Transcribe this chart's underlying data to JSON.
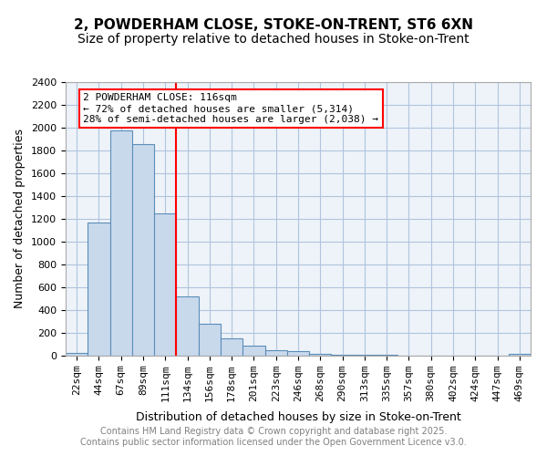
{
  "title1": "2, POWDERHAM CLOSE, STOKE-ON-TRENT, ST6 6XN",
  "title2": "Size of property relative to detached houses in Stoke-on-Trent",
  "xlabel": "Distribution of detached houses by size in Stoke-on-Trent",
  "ylabel": "Number of detached properties",
  "categories": [
    "22sqm",
    "44sqm",
    "67sqm",
    "89sqm",
    "111sqm",
    "134sqm",
    "156sqm",
    "178sqm",
    "201sqm",
    "223sqm",
    "246sqm",
    "268sqm",
    "290sqm",
    "313sqm",
    "335sqm",
    "357sqm",
    "380sqm",
    "402sqm",
    "424sqm",
    "447sqm",
    "469sqm"
  ],
  "values": [
    25,
    1170,
    1980,
    1860,
    1250,
    520,
    280,
    155,
    90,
    45,
    40,
    18,
    12,
    8,
    5,
    3,
    2,
    2,
    1,
    1,
    15
  ],
  "bar_color": "#c9d9ec",
  "bar_edge_color": "#5b8db8",
  "vline_x": 4.5,
  "vline_color": "red",
  "annotation_text": "2 POWDERHAM CLOSE: 116sqm\n← 72% of detached houses are smaller (5,314)\n28% of semi-detached houses are larger (2,038) →",
  "annotation_box_color": "white",
  "annotation_box_edge": "red",
  "ylim": [
    0,
    2400
  ],
  "yticks": [
    0,
    200,
    400,
    600,
    800,
    1000,
    1200,
    1400,
    1600,
    1800,
    2000,
    2200,
    2400
  ],
  "grid_color": "#b0c4de",
  "bg_color": "#eef3f9",
  "footer_text": "Contains HM Land Registry data © Crown copyright and database right 2025.\nContains public sector information licensed under the Open Government Licence v3.0.",
  "title_fontsize": 11,
  "subtitle_fontsize": 10,
  "axis_label_fontsize": 9,
  "tick_fontsize": 8,
  "annotation_fontsize": 8,
  "footer_fontsize": 7
}
